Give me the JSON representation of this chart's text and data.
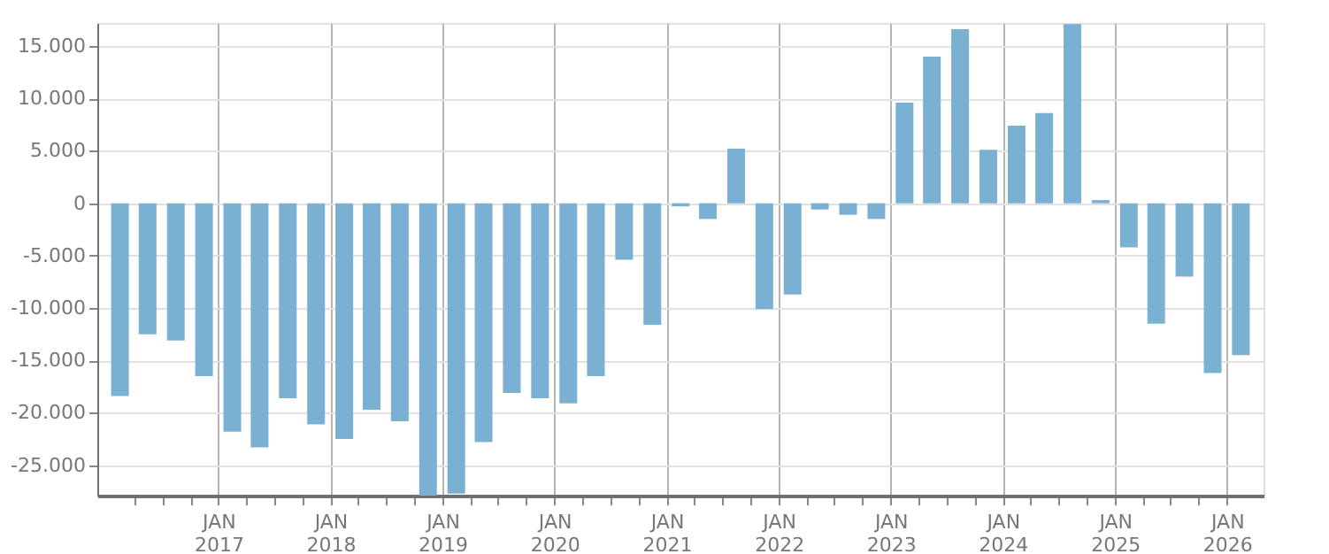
{
  "chart_data": {
    "type": "bar",
    "color": "#7ab0d2",
    "x": [
      "2016-02-15",
      "2016-05-15",
      "2016-08-15",
      "2016-11-15",
      "2017-02-15",
      "2017-05-15",
      "2017-08-15",
      "2017-11-15",
      "2018-02-15",
      "2018-05-15",
      "2018-08-15",
      "2018-11-15",
      "2019-02-15",
      "2019-05-15",
      "2019-08-15",
      "2019-11-15",
      "2020-02-15",
      "2020-05-15",
      "2020-08-15",
      "2020-11-15",
      "2021-02-15",
      "2021-05-15",
      "2021-08-15",
      "2021-11-15",
      "2022-02-15",
      "2022-05-15",
      "2022-08-15",
      "2022-11-15",
      "2023-02-15",
      "2023-05-15",
      "2023-08-15",
      "2023-11-15",
      "2024-02-15",
      "2024-05-15",
      "2024-08-15",
      "2024-11-15",
      "2025-02-15",
      "2025-05-15",
      "2025-08-15",
      "2025-11-15",
      "2026-02-15"
    ],
    "values": [
      -18400,
      -12500,
      -13100,
      -16500,
      -21800,
      -23300,
      -18600,
      -21100,
      -22500,
      -19700,
      -20800,
      -27900,
      -27700,
      -22800,
      -18100,
      -18600,
      -19100,
      -16500,
      -5400,
      -11600,
      -300,
      -1500,
      5200,
      -10100,
      -8700,
      -600,
      -1100,
      -1500,
      9600,
      14000,
      16600,
      5100,
      7400,
      8600,
      17100,
      300,
      -4200,
      -11500,
      -7000,
      -16200,
      -14500
    ],
    "xlim": [
      "2016-01-01",
      "2026-04-01"
    ],
    "xticks": [
      {
        "value": "2016-04-01",
        "label": null
      },
      {
        "value": "2016-07-01",
        "label": null
      },
      {
        "value": "2016-10-01",
        "label": null
      },
      {
        "value": "2017-01-01",
        "label": "JAN 2017"
      },
      {
        "value": "2017-04-01",
        "label": null
      },
      {
        "value": "2017-07-01",
        "label": null
      },
      {
        "value": "2017-10-01",
        "label": null
      },
      {
        "value": "2018-01-01",
        "label": "JAN 2018"
      },
      {
        "value": "2018-04-01",
        "label": null
      },
      {
        "value": "2018-07-01",
        "label": null
      },
      {
        "value": "2018-10-01",
        "label": null
      },
      {
        "value": "2019-01-01",
        "label": "JAN 2019"
      },
      {
        "value": "2019-04-01",
        "label": null
      },
      {
        "value": "2019-07-01",
        "label": null
      },
      {
        "value": "2019-10-01",
        "label": null
      },
      {
        "value": "2020-01-01",
        "label": "JAN 2020"
      },
      {
        "value": "2020-04-01",
        "label": null
      },
      {
        "value": "2020-07-01",
        "label": null
      },
      {
        "value": "2020-10-01",
        "label": null
      },
      {
        "value": "2021-01-01",
        "label": "JAN 2021"
      },
      {
        "value": "2021-04-01",
        "label": null
      },
      {
        "value": "2021-07-01",
        "label": null
      },
      {
        "value": "2021-10-01",
        "label": null
      },
      {
        "value": "2022-01-01",
        "label": "JAN 2022"
      },
      {
        "value": "2022-04-01",
        "label": null
      },
      {
        "value": "2022-07-01",
        "label": null
      },
      {
        "value": "2022-10-01",
        "label": null
      },
      {
        "value": "2023-01-01",
        "label": "JAN 2023"
      },
      {
        "value": "2023-04-01",
        "label": null
      },
      {
        "value": "2023-07-01",
        "label": null
      },
      {
        "value": "2023-10-01",
        "label": null
      },
      {
        "value": "2024-01-01",
        "label": "JAN 2024"
      },
      {
        "value": "2024-04-01",
        "label": null
      },
      {
        "value": "2024-07-01",
        "label": null
      },
      {
        "value": "2024-10-01",
        "label": null
      },
      {
        "value": "2025-01-01",
        "label": "JAN 2025"
      },
      {
        "value": "2025-04-01",
        "label": null
      },
      {
        "value": "2025-07-01",
        "label": null
      },
      {
        "value": "2025-10-01",
        "label": null
      },
      {
        "value": "2026-01-01",
        "label": "JAN 2026"
      }
    ],
    "ylim": [
      -27900,
      17200
    ],
    "yticks": [
      {
        "value": -25000,
        "label": "-25.000"
      },
      {
        "value": -20000,
        "label": "-20.000"
      },
      {
        "value": -15000,
        "label": "-15.000"
      },
      {
        "value": -10000,
        "label": "-10.000"
      },
      {
        "value": -5000,
        "label": "-5.000"
      },
      {
        "value": 0,
        "label": "0"
      },
      {
        "value": 5000,
        "label": "5.000"
      },
      {
        "value": 10000,
        "label": "10.000"
      },
      {
        "value": 15000,
        "label": "15.000"
      }
    ],
    "grid": true,
    "legend": false
  }
}
